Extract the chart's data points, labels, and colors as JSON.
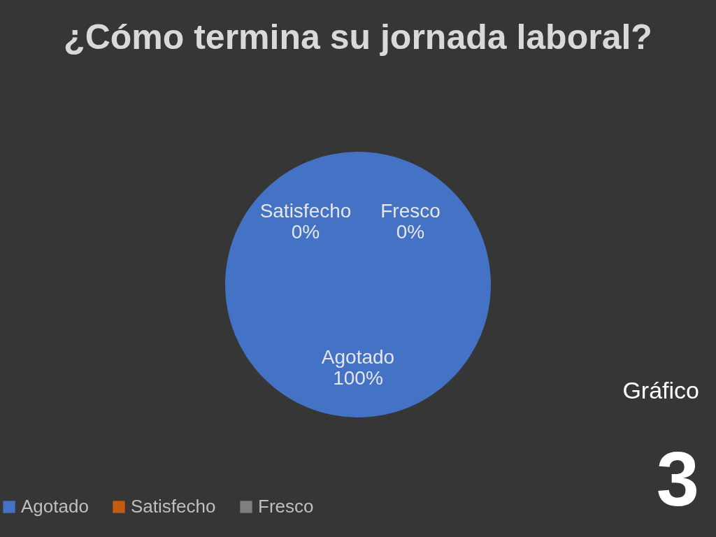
{
  "chart_data": {
    "type": "pie",
    "title": "¿Cómo termina su jornada laboral?",
    "categories": [
      "Agotado",
      "Satisfecho",
      "Fresco"
    ],
    "values": [
      100,
      0,
      0
    ],
    "colors": [
      "#4472c4",
      "#c55a11",
      "#7f7f7f"
    ],
    "value_labels": [
      "100%",
      "0%",
      "0%"
    ],
    "legend": "bottom",
    "annotations": [
      "Gráfico",
      "3"
    ]
  }
}
